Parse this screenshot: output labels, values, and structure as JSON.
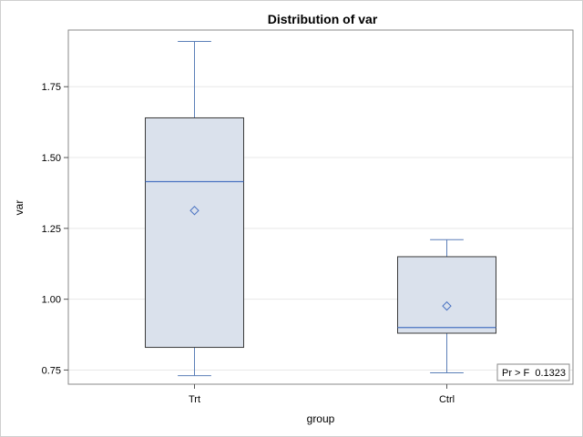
{
  "chart_data": {
    "type": "box",
    "title": "Distribution of var",
    "xlabel": "group",
    "ylabel": "var",
    "categories": [
      "Trt",
      "Ctrl"
    ],
    "ylim": [
      0.7,
      1.95
    ],
    "yticks": [
      0.75,
      1.0,
      1.25,
      1.5,
      1.75
    ],
    "ytick_labels": [
      "0.75",
      "1.00",
      "1.25",
      "1.50",
      "1.75"
    ],
    "grid": true,
    "boxes": [
      {
        "category": "Trt",
        "min": 0.73,
        "q1": 0.83,
        "median": 1.415,
        "q3": 1.64,
        "max": 1.91,
        "mean": 1.313
      },
      {
        "category": "Ctrl",
        "min": 0.74,
        "q1": 0.88,
        "median": 0.9,
        "q3": 1.15,
        "max": 1.21,
        "mean": 0.976
      }
    ],
    "inset": {
      "label": "Pr > F",
      "value": "0.1323",
      "position": "bottom-right"
    },
    "colors": {
      "box_fill": "#dae1ec",
      "box_edge": "#3a3a3a",
      "whisker": "#5b7fb8",
      "median": "#4a73c2",
      "mean_marker": "#4a73c2",
      "grid": "#e8e8e8",
      "frame": "#8a8a8a"
    }
  }
}
